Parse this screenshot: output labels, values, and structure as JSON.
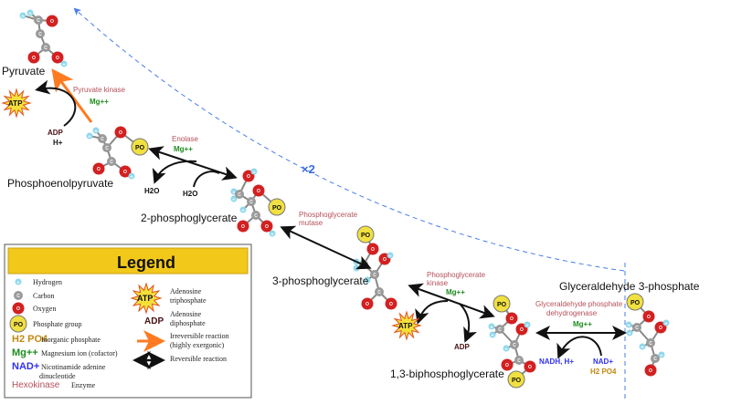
{
  "molecules": {
    "pyruvate": "Pyruvate",
    "pep": "Phosphoenolpyruvate",
    "pg2": "2-phosphoglycerate",
    "pg3": "3-phosphoglycerate",
    "bpg": "1,3-biphosphoglycerate",
    "g3p": "Glyceraldehyde 3-phosphate"
  },
  "enzymes": {
    "pk": "Pyruvate kinase",
    "enolase": "Enolase",
    "pgm": [
      "Phosphoglycerate",
      "mutase"
    ],
    "pgk": [
      "Phosphoglycerate",
      "kinase"
    ],
    "gapdh": [
      "Glyceraldehyde phosphate",
      "dehydrogenase"
    ]
  },
  "cofactors": {
    "mg": "Mg++",
    "adp": "ADP",
    "atp": "ATP",
    "h": "H+",
    "h2o": "H2O",
    "nadh": "NADH, H+",
    "nad": "NAD+",
    "pi": "H2 PO4"
  },
  "multiplier": "×2",
  "atoms": {
    "H": "H",
    "C": "C",
    "O": "O",
    "P": "PO"
  },
  "legend": {
    "title": "Legend",
    "items": [
      {
        "symbol": "H",
        "text": "Hydrogen"
      },
      {
        "symbol": "C",
        "text": "Carbon"
      },
      {
        "symbol": "O",
        "text": "Oxygen"
      },
      {
        "symbol": "PO",
        "text": "Phosphate group"
      },
      {
        "symbol": "H2 PO4",
        "text": "Inorganic phosphate"
      },
      {
        "symbol": "Mg++",
        "text": "Magnesium ion (cofactor)"
      },
      {
        "symbol": "NAD+",
        "text": [
          "Nicotinamide adenine",
          "dinucleotide"
        ]
      },
      {
        "symbol": "Hexokinase",
        "text": "Enzyme"
      }
    ],
    "right": [
      {
        "symbol": "ATP",
        "text": [
          "Adenosine",
          "triphosphate"
        ]
      },
      {
        "symbol": "ADP",
        "text": [
          "Adenosine",
          "diphosphate"
        ]
      },
      {
        "symbol": "orange-arrow",
        "text": [
          "Irreversible reaction",
          "(highly exergonic)"
        ]
      },
      {
        "symbol": "double-arrow",
        "text": [
          "Reversible reaction"
        ]
      }
    ]
  },
  "colors": {
    "hydrogen": "#8fd8ec",
    "carbon": "#9a9a9a",
    "oxygen": "#d32020",
    "phosphate": "#f0e040",
    "irreversible": "#ff7a20",
    "loop": "#4a7de8",
    "legend_header": "#f2c81a"
  }
}
